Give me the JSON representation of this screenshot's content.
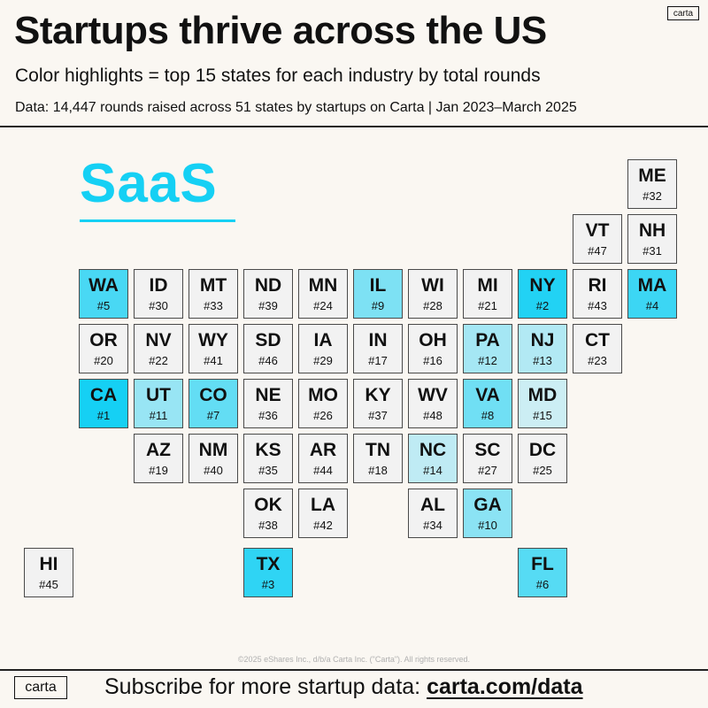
{
  "header": {
    "title": "Startups thrive across the US",
    "subtitle": "Color highlights = top 15 states for each industry by total rounds",
    "source": "Data: 14,447 rounds raised across 51 states by startups on Carta | Jan 2023–March 2025",
    "logo": "carta"
  },
  "footer": {
    "copyright": "©2025 eShares Inc., d/b/a Carta Inc. (\"Carta\"). All rights reserved.",
    "logo": "carta",
    "cta_text": "Subscribe for more startup data: ",
    "cta_link": "carta.com/data"
  },
  "chart_data": {
    "type": "heatmap",
    "title": "SaaS",
    "accent_color": "#15d0f4",
    "highlight_rule": "top 15 states by total rounds",
    "neutral_color": "#f2f2f2",
    "states": [
      {
        "abbr": "ME",
        "rank": 32,
        "col": 11,
        "row": 0
      },
      {
        "abbr": "VT",
        "rank": 47,
        "col": 10,
        "row": 1
      },
      {
        "abbr": "NH",
        "rank": 31,
        "col": 11,
        "row": 1
      },
      {
        "abbr": "WA",
        "rank": 5,
        "col": 1,
        "row": 2
      },
      {
        "abbr": "ID",
        "rank": 30,
        "col": 2,
        "row": 2
      },
      {
        "abbr": "MT",
        "rank": 33,
        "col": 3,
        "row": 2
      },
      {
        "abbr": "ND",
        "rank": 39,
        "col": 4,
        "row": 2
      },
      {
        "abbr": "MN",
        "rank": 24,
        "col": 5,
        "row": 2
      },
      {
        "abbr": "IL",
        "rank": 9,
        "col": 6,
        "row": 2
      },
      {
        "abbr": "WI",
        "rank": 28,
        "col": 7,
        "row": 2
      },
      {
        "abbr": "MI",
        "rank": 21,
        "col": 8,
        "row": 2
      },
      {
        "abbr": "NY",
        "rank": 2,
        "col": 9,
        "row": 2
      },
      {
        "abbr": "RI",
        "rank": 43,
        "col": 10,
        "row": 2
      },
      {
        "abbr": "MA",
        "rank": 4,
        "col": 11,
        "row": 2
      },
      {
        "abbr": "OR",
        "rank": 20,
        "col": 1,
        "row": 3
      },
      {
        "abbr": "NV",
        "rank": 22,
        "col": 2,
        "row": 3
      },
      {
        "abbr": "WY",
        "rank": 41,
        "col": 3,
        "row": 3
      },
      {
        "abbr": "SD",
        "rank": 46,
        "col": 4,
        "row": 3
      },
      {
        "abbr": "IA",
        "rank": 29,
        "col": 5,
        "row": 3
      },
      {
        "abbr": "IN",
        "rank": 17,
        "col": 6,
        "row": 3
      },
      {
        "abbr": "OH",
        "rank": 16,
        "col": 7,
        "row": 3
      },
      {
        "abbr": "PA",
        "rank": 12,
        "col": 8,
        "row": 3
      },
      {
        "abbr": "NJ",
        "rank": 13,
        "col": 9,
        "row": 3
      },
      {
        "abbr": "CT",
        "rank": 23,
        "col": 10,
        "row": 3
      },
      {
        "abbr": "CA",
        "rank": 1,
        "col": 1,
        "row": 4
      },
      {
        "abbr": "UT",
        "rank": 11,
        "col": 2,
        "row": 4
      },
      {
        "abbr": "CO",
        "rank": 7,
        "col": 3,
        "row": 4
      },
      {
        "abbr": "NE",
        "rank": 36,
        "col": 4,
        "row": 4
      },
      {
        "abbr": "MO",
        "rank": 26,
        "col": 5,
        "row": 4
      },
      {
        "abbr": "KY",
        "rank": 37,
        "col": 6,
        "row": 4
      },
      {
        "abbr": "WV",
        "rank": 48,
        "col": 7,
        "row": 4
      },
      {
        "abbr": "VA",
        "rank": 8,
        "col": 8,
        "row": 4
      },
      {
        "abbr": "MD",
        "rank": 15,
        "col": 9,
        "row": 4
      },
      {
        "abbr": "AZ",
        "rank": 19,
        "col": 2,
        "row": 5
      },
      {
        "abbr": "NM",
        "rank": 40,
        "col": 3,
        "row": 5
      },
      {
        "abbr": "KS",
        "rank": 35,
        "col": 4,
        "row": 5
      },
      {
        "abbr": "AR",
        "rank": 44,
        "col": 5,
        "row": 5
      },
      {
        "abbr": "TN",
        "rank": 18,
        "col": 6,
        "row": 5
      },
      {
        "abbr": "NC",
        "rank": 14,
        "col": 7,
        "row": 5
      },
      {
        "abbr": "SC",
        "rank": 27,
        "col": 8,
        "row": 5
      },
      {
        "abbr": "DC",
        "rank": 25,
        "col": 9,
        "row": 5
      },
      {
        "abbr": "OK",
        "rank": 38,
        "col": 4,
        "row": 6
      },
      {
        "abbr": "LA",
        "rank": 42,
        "col": 5,
        "row": 6
      },
      {
        "abbr": "AL",
        "rank": 34,
        "col": 7,
        "row": 6
      },
      {
        "abbr": "GA",
        "rank": 10,
        "col": 8,
        "row": 6
      },
      {
        "abbr": "HI",
        "rank": 45,
        "col": 0,
        "row": 7
      },
      {
        "abbr": "TX",
        "rank": 3,
        "col": 4,
        "row": 7
      },
      {
        "abbr": "FL",
        "rank": 6,
        "col": 9,
        "row": 7
      }
    ]
  }
}
